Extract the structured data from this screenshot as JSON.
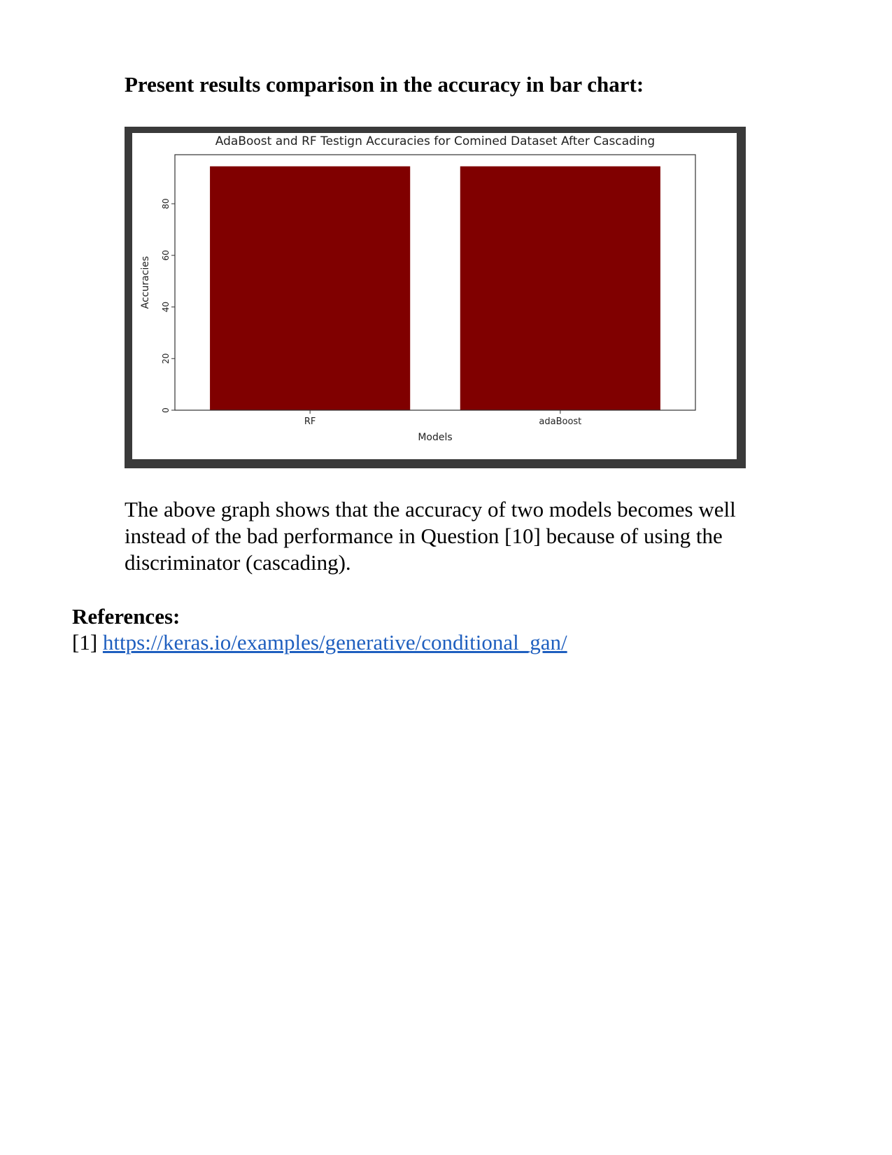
{
  "document": {
    "heading": "Present results comparison in the accuracy in bar chart:",
    "paragraph": "The above graph shows that the accuracy of two models becomes well instead of the bad performance in Question [10] because of using the discriminator (cascading).",
    "references_heading": "References:",
    "references": [
      {
        "marker": "[1]",
        "url": "https://keras.io/examples/generative/conditional_gan/"
      }
    ]
  },
  "chart_data": {
    "type": "bar",
    "title": "AdaBoost and RF Testign Accuracies for Comined Dataset After Cascading",
    "xlabel": "Models",
    "ylabel": "Accuracies",
    "categories": [
      "RF",
      "adaBoost"
    ],
    "values": [
      94.5,
      94.5
    ],
    "ylim": [
      0,
      99
    ],
    "yticks": [
      0,
      20,
      40,
      60,
      80
    ],
    "bar_color": "#800000",
    "grid": false,
    "legend": "none"
  }
}
